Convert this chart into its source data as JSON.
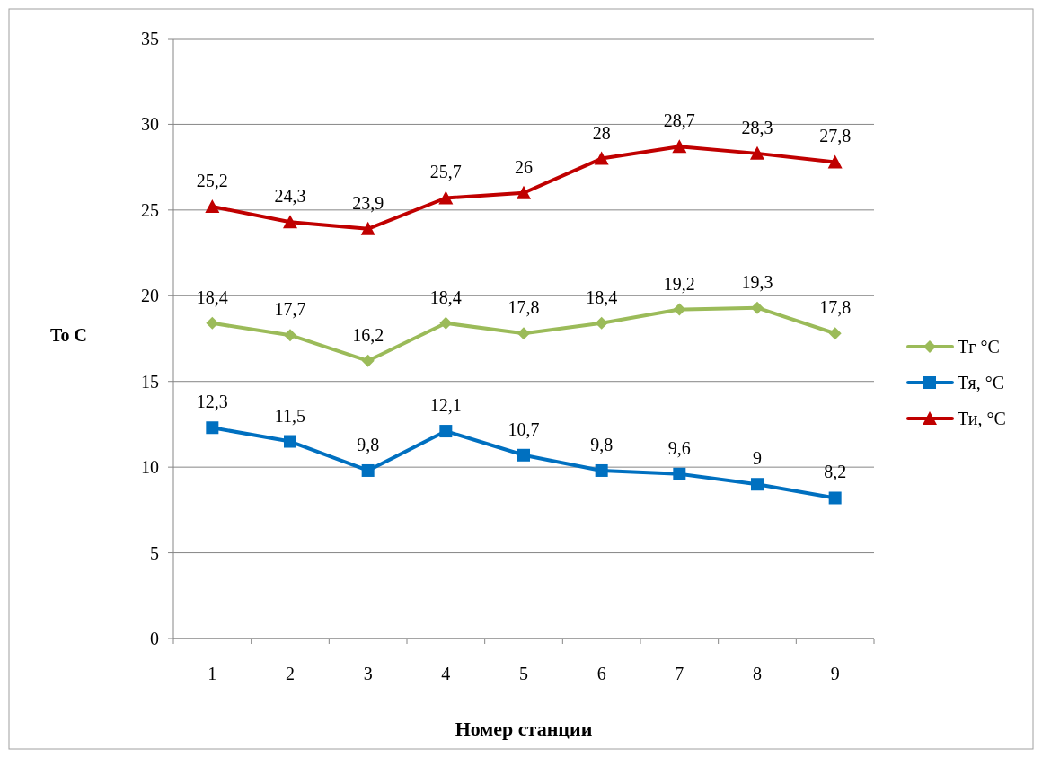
{
  "chart_data": {
    "type": "line",
    "xlabel": "Номер станции",
    "ylabel": "To C",
    "categories": [
      "1",
      "2",
      "3",
      "4",
      "5",
      "6",
      "7",
      "8",
      "9"
    ],
    "ylim": [
      0,
      35
    ],
    "yticks": [
      0,
      5,
      10,
      15,
      20,
      25,
      30,
      35
    ],
    "grid": "y",
    "legend": "right",
    "series": [
      {
        "name": "Тг °С",
        "color": "#9bbb59",
        "marker": "diamond",
        "values": [
          18.4,
          17.7,
          16.2,
          18.4,
          17.8,
          18.4,
          19.2,
          19.3,
          17.8
        ],
        "value_labels": [
          "18,4",
          "17,7",
          "16,2",
          "18,4",
          "17,8",
          "18,4",
          "19,2",
          "19,3",
          "17,8"
        ]
      },
      {
        "name": "Тя, °С",
        "color": "#0070c0",
        "marker": "square",
        "values": [
          12.3,
          11.5,
          9.8,
          12.1,
          10.7,
          9.8,
          9.6,
          9,
          8.2
        ],
        "value_labels": [
          "12,3",
          "11,5",
          "9,8",
          "12,1",
          "10,7",
          "9,8",
          "9,6",
          "9",
          "8,2"
        ]
      },
      {
        "name": "Ти, °С",
        "color": "#c00000",
        "marker": "triangle",
        "values": [
          25.2,
          24.3,
          23.9,
          25.7,
          26,
          28,
          28.7,
          28.3,
          27.8
        ],
        "value_labels": [
          "25,2",
          "24,3",
          "23,9",
          "25,7",
          "26",
          "28",
          "28,7",
          "28,3",
          "27,8"
        ]
      }
    ]
  }
}
